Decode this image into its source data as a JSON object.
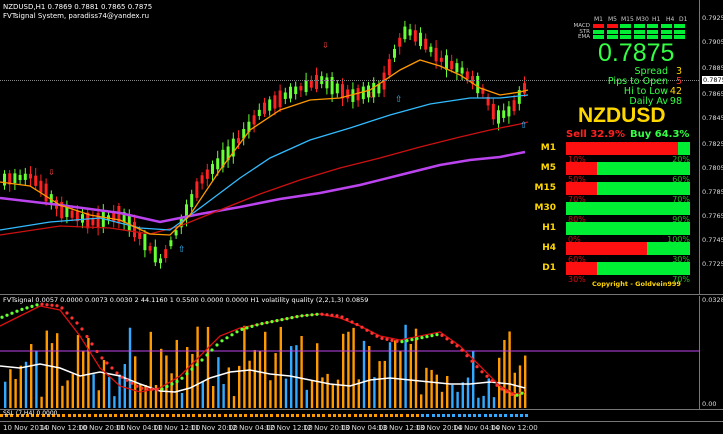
{
  "header": {
    "symbol_line": "NZDUSD,H1  0.7869 0.7881 0.7865 0.7875",
    "system_line": "FVTsignal System, paradiss74@yandex.ru"
  },
  "price_axis": [
    "0.7925",
    "0.7905",
    "0.7885",
    "0.7875",
    "0.7865",
    "0.7845",
    "0.7825",
    "0.7805",
    "0.7785",
    "0.7765",
    "0.7745",
    "0.7725"
  ],
  "sub_axis": [
    "0.0328",
    "0.00"
  ],
  "time_axis": [
    "10 Nov 2014",
    "10 Nov 12:00",
    "10 Nov 20:00",
    "11 Nov 04:00",
    "11 Nov 12:00",
    "11 Nov 20:00",
    "12 Nov 04:00",
    "12 Nov 12:00",
    "12 Nov 20:00",
    "13 Nov 04:00",
    "13 Nov 12:00",
    "13 Nov 20:00",
    "14 Nov 04:00",
    "14 Nov 12:00"
  ],
  "panel": {
    "tf_header": [
      "M1",
      "M5",
      "M15",
      "M30",
      "H1",
      "H4",
      "D1"
    ],
    "ind_rows": [
      "MACD",
      "STR",
      "EMA"
    ],
    "price": "0.7875",
    "stats": [
      {
        "label": "Spread",
        "value": "3"
      },
      {
        "label": "Pips to Open",
        "value": "5"
      },
      {
        "label": "Hi to Low",
        "value": "42"
      },
      {
        "label": "Daily Av",
        "value": "98"
      }
    ],
    "pair": "NZDUSD",
    "sell": "Sell 32.9%",
    "buy": "Buy 64.3%",
    "rows": [
      {
        "tf": "M1",
        "sell_pct": "10%",
        "buy_pct": "20%",
        "fill": 0.9
      },
      {
        "tf": "M5",
        "sell_pct": "50%",
        "buy_pct": "60%",
        "fill": 0.25
      },
      {
        "tf": "M15",
        "sell_pct": "70%",
        "buy_pct": "70%",
        "fill": 0.25
      },
      {
        "tf": "M30",
        "sell_pct": "80%",
        "buy_pct": "90%",
        "fill": 0.0
      },
      {
        "tf": "H1",
        "sell_pct": "0%",
        "buy_pct": "100%",
        "fill": 0.0
      },
      {
        "tf": "H4",
        "sell_pct": "60%",
        "buy_pct": "30%",
        "fill": 0.65
      },
      {
        "tf": "D1",
        "sell_pct": "30%",
        "buy_pct": "70%",
        "fill": 0.25
      }
    ],
    "copyright": "Copyright - Goldvein999"
  },
  "sub_header": "FVTsignal 0.0057 0.0000 0.0073 0.0030  2 44.1160  1 0.5500 0.0000 0.0000  H1 volatility quality (2,2,1,3) 0.0859",
  "ssl_label": "SSL (7,H4) 0.0000",
  "colors": {
    "bull": "#66ff33",
    "bear": "#ff2222",
    "ma_orange": "#ff9900",
    "ma_blue": "#33bbff",
    "ma_red": "#cc1111",
    "ma_purple": "#bb44ee",
    "buy_green": "#00ee33",
    "sell_red": "#ff1010",
    "gold": "#ffd700"
  }
}
